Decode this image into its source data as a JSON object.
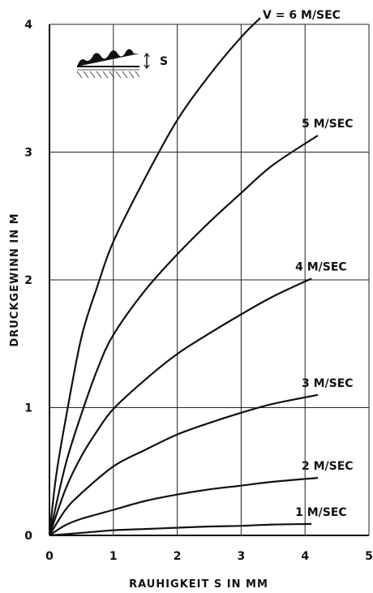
{
  "chart_data": {
    "type": "line",
    "xlabel": "RAUHIGKEIT  S  IN  MM",
    "ylabel": "DRUCKGEWINN  IN  M",
    "xlim": [
      0,
      5
    ],
    "ylim": [
      0,
      4
    ],
    "xticks": [
      "0",
      "1",
      "2",
      "3",
      "4",
      "5"
    ],
    "yticks": [
      "0",
      "1",
      "2",
      "3",
      "4"
    ],
    "grid": true,
    "inset_label": "S",
    "series": [
      {
        "name": "1 M/SEC",
        "x": [
          0,
          0.5,
          1,
          1.5,
          2,
          2.5,
          3,
          3.5,
          4.1
        ],
        "y": [
          0,
          0.02,
          0.04,
          0.05,
          0.06,
          0.07,
          0.075,
          0.085,
          0.09
        ]
      },
      {
        "name": "2 M/SEC",
        "x": [
          0,
          0.25,
          0.5,
          1,
          1.5,
          2,
          2.5,
          3,
          3.5,
          4.2
        ],
        "y": [
          0,
          0.08,
          0.13,
          0.2,
          0.27,
          0.32,
          0.36,
          0.39,
          0.42,
          0.45
        ]
      },
      {
        "name": "3 M/SEC",
        "x": [
          0,
          0.25,
          0.5,
          1,
          1.5,
          2,
          2.5,
          3,
          3.5,
          4.2
        ],
        "y": [
          0,
          0.2,
          0.33,
          0.54,
          0.67,
          0.79,
          0.88,
          0.96,
          1.03,
          1.1
        ]
      },
      {
        "name": "4 M/SEC",
        "x": [
          0,
          0.25,
          0.5,
          0.75,
          1,
          1.5,
          2,
          2.5,
          3,
          3.5,
          4.1
        ],
        "y": [
          0,
          0.36,
          0.62,
          0.82,
          0.99,
          1.22,
          1.42,
          1.58,
          1.73,
          1.87,
          2.01
        ]
      },
      {
        "name": "5 M/SEC",
        "x": [
          0,
          0.25,
          0.5,
          0.75,
          1,
          1.5,
          2,
          2.5,
          3,
          3.5,
          4.2
        ],
        "y": [
          0,
          0.55,
          0.95,
          1.3,
          1.57,
          1.92,
          2.2,
          2.45,
          2.68,
          2.9,
          3.13
        ]
      },
      {
        "name": "V = 6 M/SEC",
        "x": [
          0,
          0.1,
          0.25,
          0.5,
          0.75,
          1,
          1.5,
          2,
          2.5,
          3,
          3.3
        ],
        "y": [
          0,
          0.45,
          0.9,
          1.55,
          1.95,
          2.3,
          2.8,
          3.25,
          3.6,
          3.9,
          4.05
        ]
      }
    ]
  }
}
